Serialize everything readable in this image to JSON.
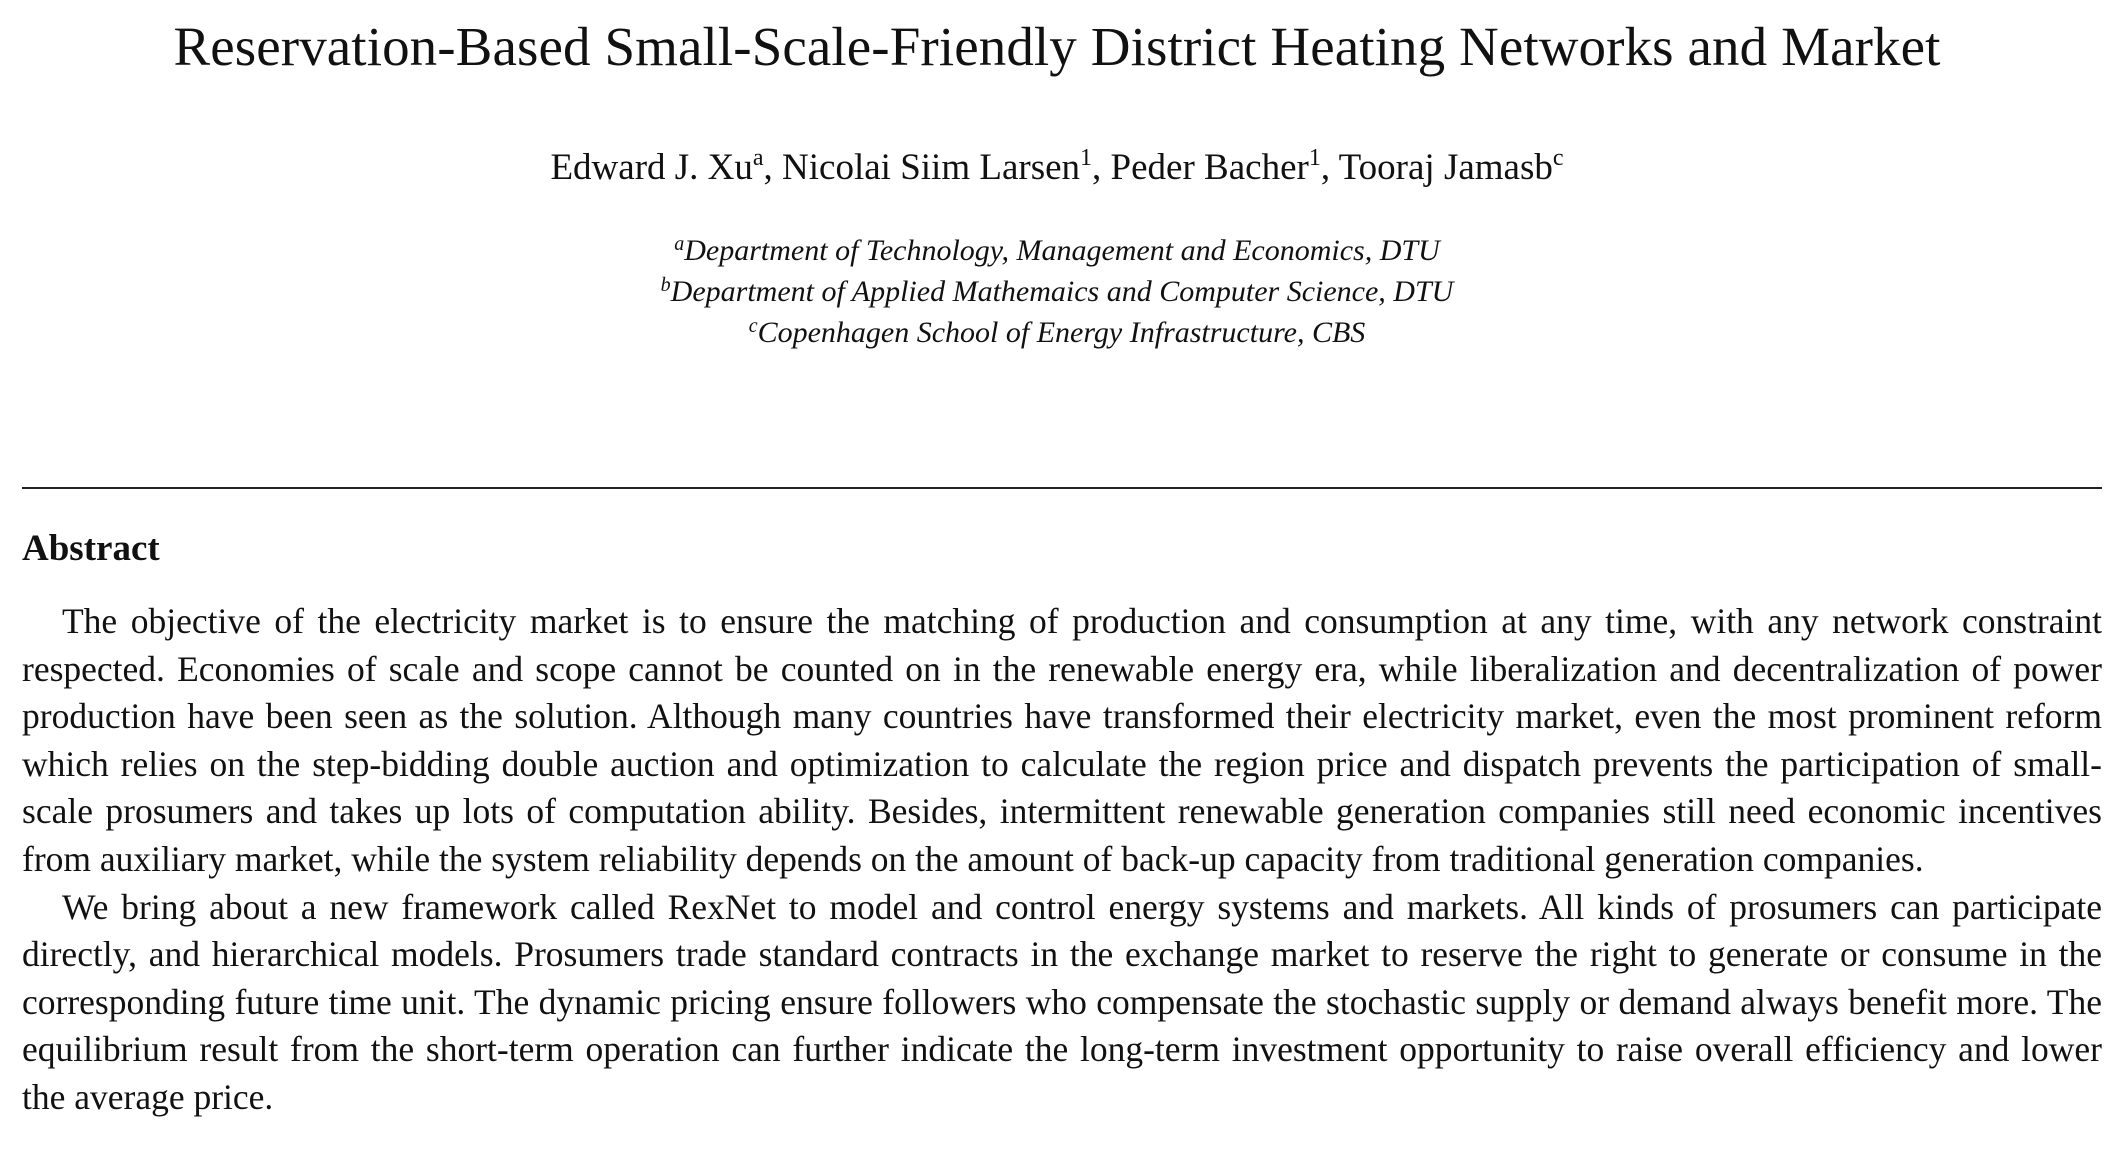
{
  "paper": {
    "title": "Reservation-Based Small-Scale-Friendly District Heating Networks and Market",
    "authors": [
      {
        "name": "Edward J. Xu",
        "mark": "a",
        "sep": ", "
      },
      {
        "name": "Nicolai Siim Larsen",
        "mark": "1",
        "sep": ", "
      },
      {
        "name": "Peder Bacher",
        "mark": "1",
        "sep": ", "
      },
      {
        "name": "Tooraj Jamasb",
        "mark": "c",
        "sep": ""
      }
    ],
    "affiliations": [
      {
        "mark": "a",
        "text": "Department of Technology, Management and Economics, DTU"
      },
      {
        "mark": "b",
        "text": "Department of Applied Mathemaics and Computer Science, DTU"
      },
      {
        "mark": "c",
        "text": "Copenhagen School of Energy Infrastructure, CBS"
      }
    ],
    "abstract": {
      "heading": "Abstract",
      "paragraphs": [
        "The objective of the electricity market is to ensure the matching of production and consumption at any time, with any network constraint respected.  Economies of scale and scope cannot be counted on in the renewable energy era, while liberalization and decentralization of power production have been seen as the solution.  Although many countries have transformed their electricity market, even the most prominent reform which relies on the step-bidding double auction and optimization to calculate the region price and dispatch prevents the participation of small-scale prosumers and takes up lots of computation ability. Besides, intermittent renewable generation companies still need economic incentives from auxiliary market, while the system reliability depends on the amount of back-up capacity from traditional generation companies.",
        "We bring about a new framework called RexNet to model and control energy systems and markets.  All kinds of prosumers can participate directly, and hierarchical models.  Prosumers trade standard contracts in the exchange market to reserve the right to generate or consume in the corresponding future time unit.  The dynamic pricing ensure followers who compensate the stochastic supply or demand always benefit more.  The equilibrium result from the short-term operation can further indicate the long-term investment opportunity to raise overall efficiency and lower the average price."
      ]
    }
  }
}
